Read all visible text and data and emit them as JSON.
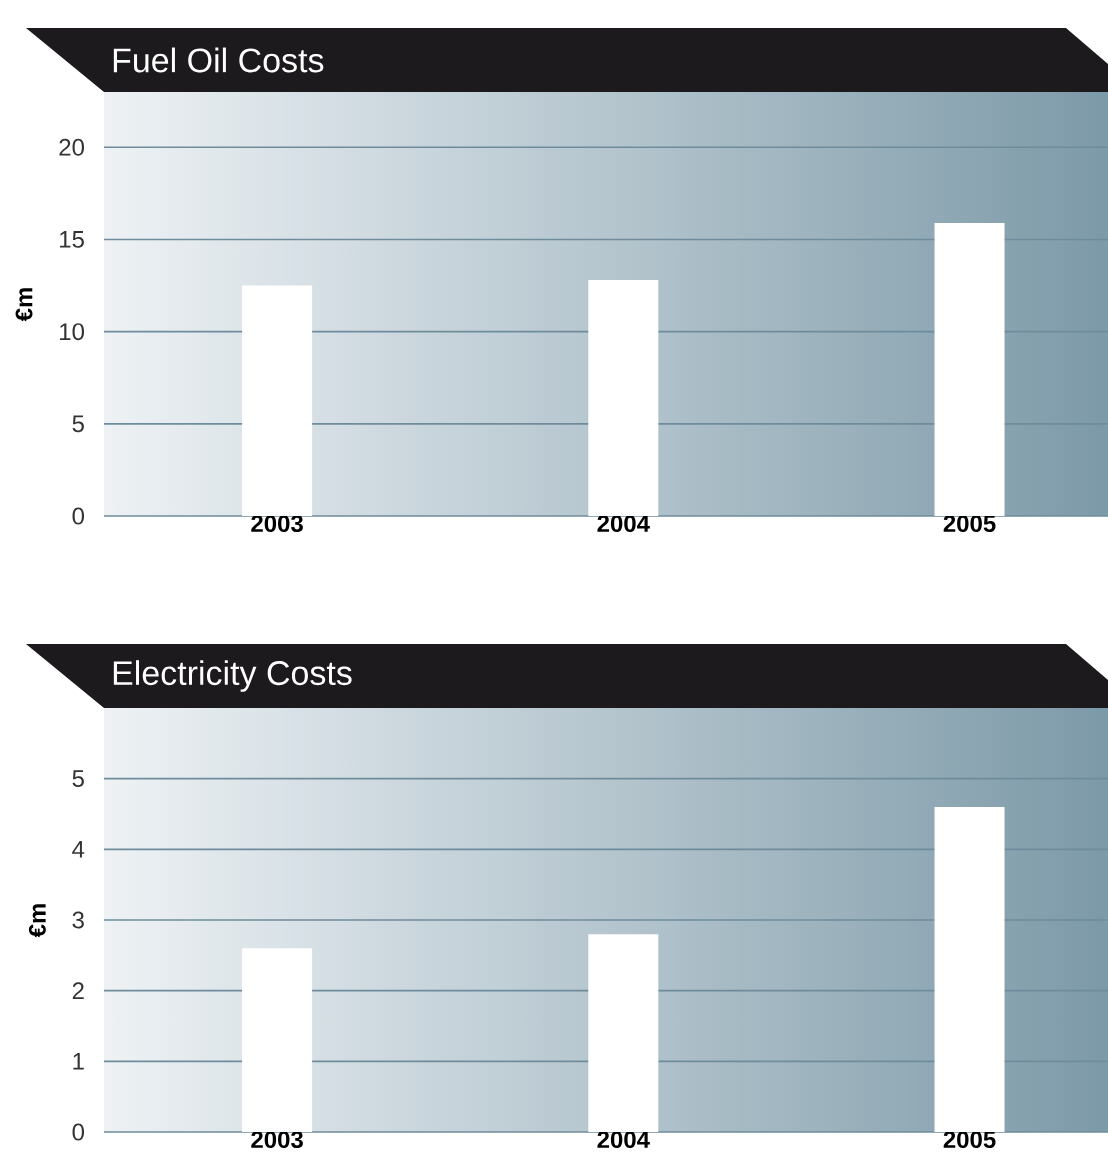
{
  "chart_data": [
    {
      "type": "bar",
      "title": "Fuel Oil Costs",
      "ylabel": "€m",
      "categories": [
        "2003",
        "2004",
        "2005"
      ],
      "values": [
        12.5,
        12.8,
        15.9
      ],
      "color": "#ffffff",
      "ylim": [
        0,
        23
      ],
      "yticks": [
        0,
        5,
        10,
        15,
        20
      ],
      "grid": "y"
    },
    {
      "type": "bar",
      "title": "Electricity Costs",
      "ylabel": "€m",
      "categories": [
        "2003",
        "2004",
        "2005"
      ],
      "values": [
        2.6,
        2.8,
        4.6
      ],
      "color": "#ffffff",
      "ylim": [
        0,
        6
      ],
      "yticks": [
        0,
        1,
        2,
        3,
        4,
        5
      ],
      "grid": "y"
    }
  ]
}
